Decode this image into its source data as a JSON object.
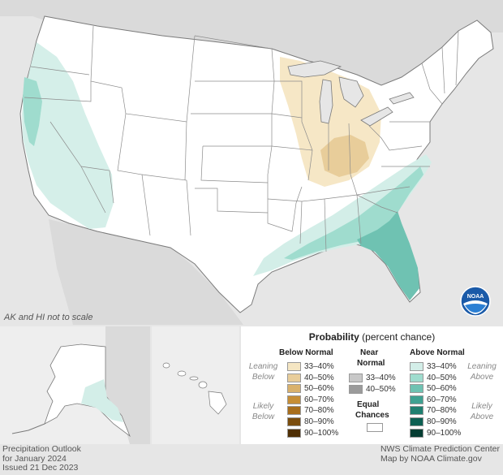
{
  "map": {
    "note": "AK and HI not to scale",
    "logo_text": "NOAA",
    "colors": {
      "land": "#ffffff",
      "water": "#e6e6e6",
      "border": "#7a7a7a",
      "below_33_40": "#f5e6c3",
      "below_40_50": "#e8cd9a",
      "above_33_40": "#d3eee8",
      "above_40_50": "#9fdcce",
      "above_50_60": "#6fc2b2"
    }
  },
  "legend": {
    "title_bold": "Probability",
    "title_rest": " (percent chance)",
    "below": {
      "heading": "Below Normal",
      "leaning_label_1": "Leaning",
      "leaning_label_2": "Below",
      "likely_label_1": "Likely",
      "likely_label_2": "Below",
      "items": [
        {
          "label": "33–40%",
          "color": "#f5e6c3"
        },
        {
          "label": "40–50%",
          "color": "#e8cd9a"
        },
        {
          "label": "50–60%",
          "color": "#d9b16c"
        },
        {
          "label": "60–70%",
          "color": "#c68e36"
        },
        {
          "label": "70–80%",
          "color": "#a86e1c"
        },
        {
          "label": "80–90%",
          "color": "#7a4d0e"
        },
        {
          "label": "90–100%",
          "color": "#4f2f05"
        }
      ]
    },
    "near": {
      "heading_1": "Near",
      "heading_2": "Normal",
      "items": [
        {
          "label": "33–40%",
          "color": "#c8c8c8"
        },
        {
          "label": "40–50%",
          "color": "#9b9b9b"
        }
      ],
      "equal_1": "Equal",
      "equal_2": "Chances",
      "equal_color": "#ffffff"
    },
    "above": {
      "heading": "Above Normal",
      "leaning_label_1": "Leaning",
      "leaning_label_2": "Above",
      "likely_label_1": "Likely",
      "likely_label_2": "Above",
      "items": [
        {
          "label": "33–40%",
          "color": "#d3eee8"
        },
        {
          "label": "40–50%",
          "color": "#9fdcce"
        },
        {
          "label": "50–60%",
          "color": "#6fc2b2"
        },
        {
          "label": "60–70%",
          "color": "#3fa191"
        },
        {
          "label": "70–80%",
          "color": "#1f7f70"
        },
        {
          "label": "80–90%",
          "color": "#0d5f52"
        },
        {
          "label": "90–100%",
          "color": "#053d33"
        }
      ]
    }
  },
  "footer": {
    "left_1": "Precipitation Outlook",
    "left_2": "for January 2024",
    "left_3": "Issued 21 Dec 2023",
    "right_1": "NWS Climate Prediction Center",
    "right_2": "Map by NOAA Climate.gov"
  }
}
